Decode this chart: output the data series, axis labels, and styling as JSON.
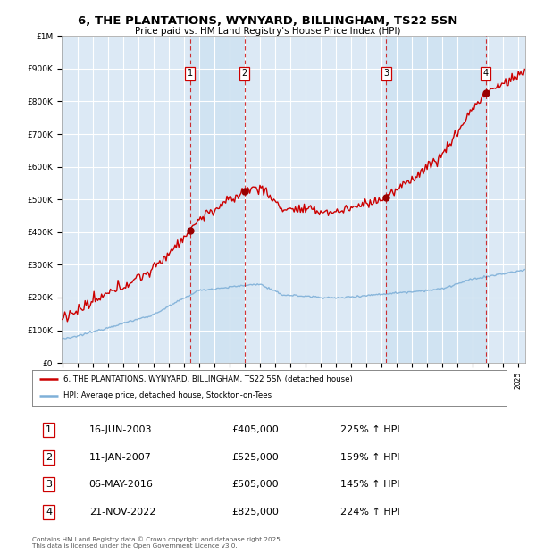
{
  "title": "6, THE PLANTATIONS, WYNYARD, BILLINGHAM, TS22 5SN",
  "subtitle": "Price paid vs. HM Land Registry's House Price Index (HPI)",
  "legend_line1": "6, THE PLANTATIONS, WYNYARD, BILLINGHAM, TS22 5SN (detached house)",
  "legend_line2": "HPI: Average price, detached house, Stockton-on-Tees",
  "footer": "Contains HM Land Registry data © Crown copyright and database right 2025.\nThis data is licensed under the Open Government Licence v3.0.",
  "sale_dates": [
    "16-JUN-2003",
    "11-JAN-2007",
    "06-MAY-2016",
    "21-NOV-2022"
  ],
  "sale_prices": [
    405000,
    525000,
    505000,
    825000
  ],
  "sale_labels": [
    "1",
    "2",
    "3",
    "4"
  ],
  "sale_pct": [
    "225% ↑ HPI",
    "159% ↑ HPI",
    "145% ↑ HPI",
    "224% ↑ HPI"
  ],
  "background_color": "#ffffff",
  "plot_bg_color": "#dce9f5",
  "grid_color": "#ffffff",
  "red_line_color": "#cc0000",
  "blue_line_color": "#7fb0d8",
  "sale_marker_color": "#990000",
  "dashed_color": "#cc0000",
  "ylim": [
    0,
    1000000
  ],
  "yticks": [
    0,
    100000,
    200000,
    300000,
    400000,
    500000,
    600000,
    700000,
    800000,
    900000,
    1000000
  ],
  "ytick_labels": [
    "£0",
    "£100K",
    "£200K",
    "£300K",
    "£400K",
    "£500K",
    "£600K",
    "£700K",
    "£800K",
    "£900K",
    "£1M"
  ],
  "xlim_start": 1995.0,
  "xlim_end": 2025.5
}
